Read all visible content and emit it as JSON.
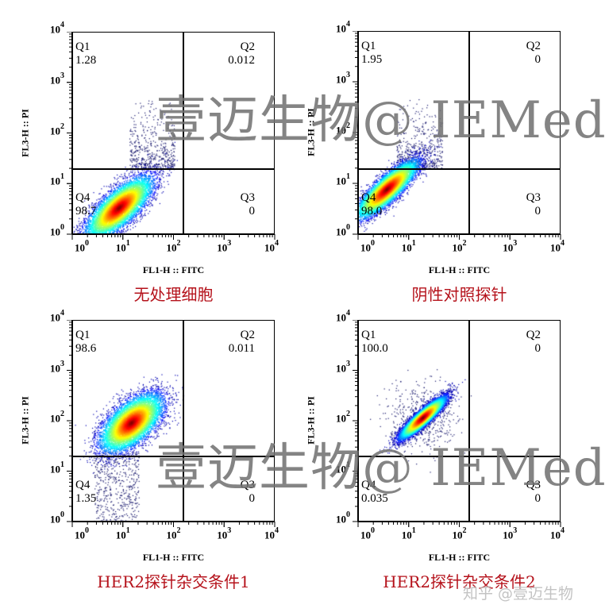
{
  "chart_data": [
    {
      "type": "scatter",
      "subtype": "flow-cytometry-density",
      "title": "无处理细胞",
      "xlabel": "FL1-H :: FITC",
      "ylabel": "FL3-H :: PI",
      "xscale": "log",
      "yscale": "log",
      "xlim": [
        1,
        10000
      ],
      "ylim": [
        1,
        10000
      ],
      "x_ticks": [
        "10^0",
        "10^1",
        "10^2",
        "10^3",
        "10^4"
      ],
      "y_ticks": [
        "10^0",
        "10^1",
        "10^2",
        "10^3",
        "10^4"
      ],
      "gate": {
        "x": 150,
        "y": 20
      },
      "quadrants": {
        "Q1": "1.28",
        "Q2": "0.012",
        "Q3": "0",
        "Q4": "98.7"
      },
      "population": {
        "center_x": 8,
        "center_y": 3.5,
        "spread_x": 0.32,
        "spread_y": 0.3,
        "corr": 0.75,
        "sparse_upper": true
      }
    },
    {
      "type": "scatter",
      "subtype": "flow-cytometry-density",
      "title": "阴性对照探针",
      "xlabel": "FL1-H :: FITC",
      "ylabel": "FL3-H :: PI",
      "xscale": "log",
      "yscale": "log",
      "xlim": [
        1,
        10000
      ],
      "ylim": [
        1,
        10000
      ],
      "x_ticks": [
        "10^0",
        "10^1",
        "10^2",
        "10^3",
        "10^4"
      ],
      "y_ticks": [
        "10^0",
        "10^1",
        "10^2",
        "10^3",
        "10^4"
      ],
      "gate": {
        "x": 150,
        "y": 20
      },
      "quadrants": {
        "Q1": "1.95",
        "Q2": "0",
        "Q3": "0",
        "Q4": "98.0"
      },
      "population": {
        "center_x": 3.5,
        "center_y": 8,
        "spread_x": 0.3,
        "spread_y": 0.28,
        "corr": 0.85,
        "sparse_upper": true
      }
    },
    {
      "type": "scatter",
      "subtype": "flow-cytometry-density",
      "title": "HER2探针杂交条件1",
      "xlabel": "FL1-H :: FITC",
      "ylabel": "FL3-H :: PI",
      "xscale": "log",
      "yscale": "log",
      "xlim": [
        1,
        10000
      ],
      "ylim": [
        1,
        10000
      ],
      "x_ticks": [
        "10^0",
        "10^1",
        "10^2",
        "10^3",
        "10^4"
      ],
      "y_ticks": [
        "10^0",
        "10^1",
        "10^2",
        "10^3",
        "10^4"
      ],
      "gate": {
        "x": 150,
        "y": 20
      },
      "quadrants": {
        "Q1": "98.6",
        "Q2": "0.011",
        "Q3": "0",
        "Q4": "1.35"
      },
      "population": {
        "center_x": 14,
        "center_y": 95,
        "spread_x": 0.3,
        "spread_y": 0.28,
        "corr": 0.6,
        "sparse_lower": true
      }
    },
    {
      "type": "scatter",
      "subtype": "flow-cytometry-density",
      "title": "HER2探针杂交条件2",
      "xlabel": "FL1-H :: FITC",
      "ylabel": "FL3-H :: PI",
      "xscale": "log",
      "yscale": "log",
      "xlim": [
        1,
        10000
      ],
      "ylim": [
        1,
        10000
      ],
      "x_ticks": [
        "10^0",
        "10^1",
        "10^2",
        "10^3",
        "10^4"
      ],
      "y_ticks": [
        "10^0",
        "10^1",
        "10^2",
        "10^3",
        "10^4"
      ],
      "gate": {
        "x": 150,
        "y": 20
      },
      "quadrants": {
        "Q1": "100.0",
        "Q2": "0",
        "Q3": "0",
        "Q4": "0.035"
      },
      "population": {
        "center_x": 18,
        "center_y": 120,
        "spread_x": 0.22,
        "spread_y": 0.2,
        "corr": 0.9
      }
    }
  ],
  "panels": [
    {
      "caption": "无处理细胞",
      "q1_label": "Q1",
      "q2_label": "Q2",
      "q3_label": "Q3",
      "q4_label": "Q4",
      "q1": "1.28",
      "q2": "0.012",
      "q3": "0",
      "q4": "98.7"
    },
    {
      "caption": "阴性对照探针",
      "q1_label": "Q1",
      "q2_label": "Q2",
      "q3_label": "Q3",
      "q4_label": "Q4",
      "q1": "1.95",
      "q2": "0",
      "q3": "0",
      "q4": "98.0"
    },
    {
      "caption": "HER2探针杂交条件1",
      "q1_label": "Q1",
      "q2_label": "Q2",
      "q3_label": "Q3",
      "q4_label": "Q4",
      "q1": "98.6",
      "q2": "0.011",
      "q3": "0",
      "q4": "1.35"
    },
    {
      "caption": "HER2探针杂交条件2",
      "q1_label": "Q1",
      "q2_label": "Q2",
      "q3_label": "Q3",
      "q4_label": "Q4",
      "q1": "100.0",
      "q2": "0",
      "q3": "0",
      "q4": "0.035"
    }
  ],
  "axes": {
    "xlabel": "FL1-H :: FITC",
    "ylabel": "FL3-H :: PI",
    "tick_base": "10",
    "tick_exps": [
      "0",
      "1",
      "2",
      "3",
      "4"
    ]
  },
  "watermark": {
    "text": "壹迈生物@ IEMed"
  },
  "zhihu_watermark": {
    "text": "知乎 @壹迈生物"
  },
  "colors": {
    "caption": "#b5121b",
    "watermark": "#6e6e6e"
  }
}
